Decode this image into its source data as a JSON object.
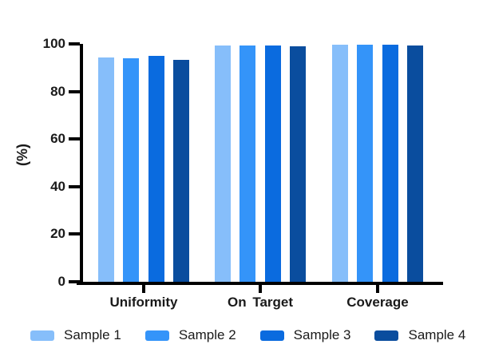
{
  "chart_data": {
    "type": "bar",
    "title": "",
    "ylabel": "(%)",
    "xlabel": "",
    "categories": [
      "Uniformity",
      "On Target",
      "Coverage"
    ],
    "series": [
      {
        "name": "Sample 1",
        "color": "#86BEFA",
        "values": [
          94.4,
          99.3,
          99.6
        ]
      },
      {
        "name": "Sample 2",
        "color": "#3494F9",
        "values": [
          93.8,
          99.3,
          99.8
        ]
      },
      {
        "name": "Sample 3",
        "color": "#0A6BDF",
        "values": [
          95.1,
          99.4,
          99.7
        ]
      },
      {
        "name": "Sample 4",
        "color": "#0A4D9E",
        "values": [
          93.2,
          99.0,
          99.5
        ]
      }
    ],
    "ylim": [
      0,
      100
    ],
    "yticks": [
      0,
      20,
      40,
      60,
      80,
      100
    ],
    "grid": false,
    "legend_position": "bottom",
    "axis_color": "#000000"
  }
}
